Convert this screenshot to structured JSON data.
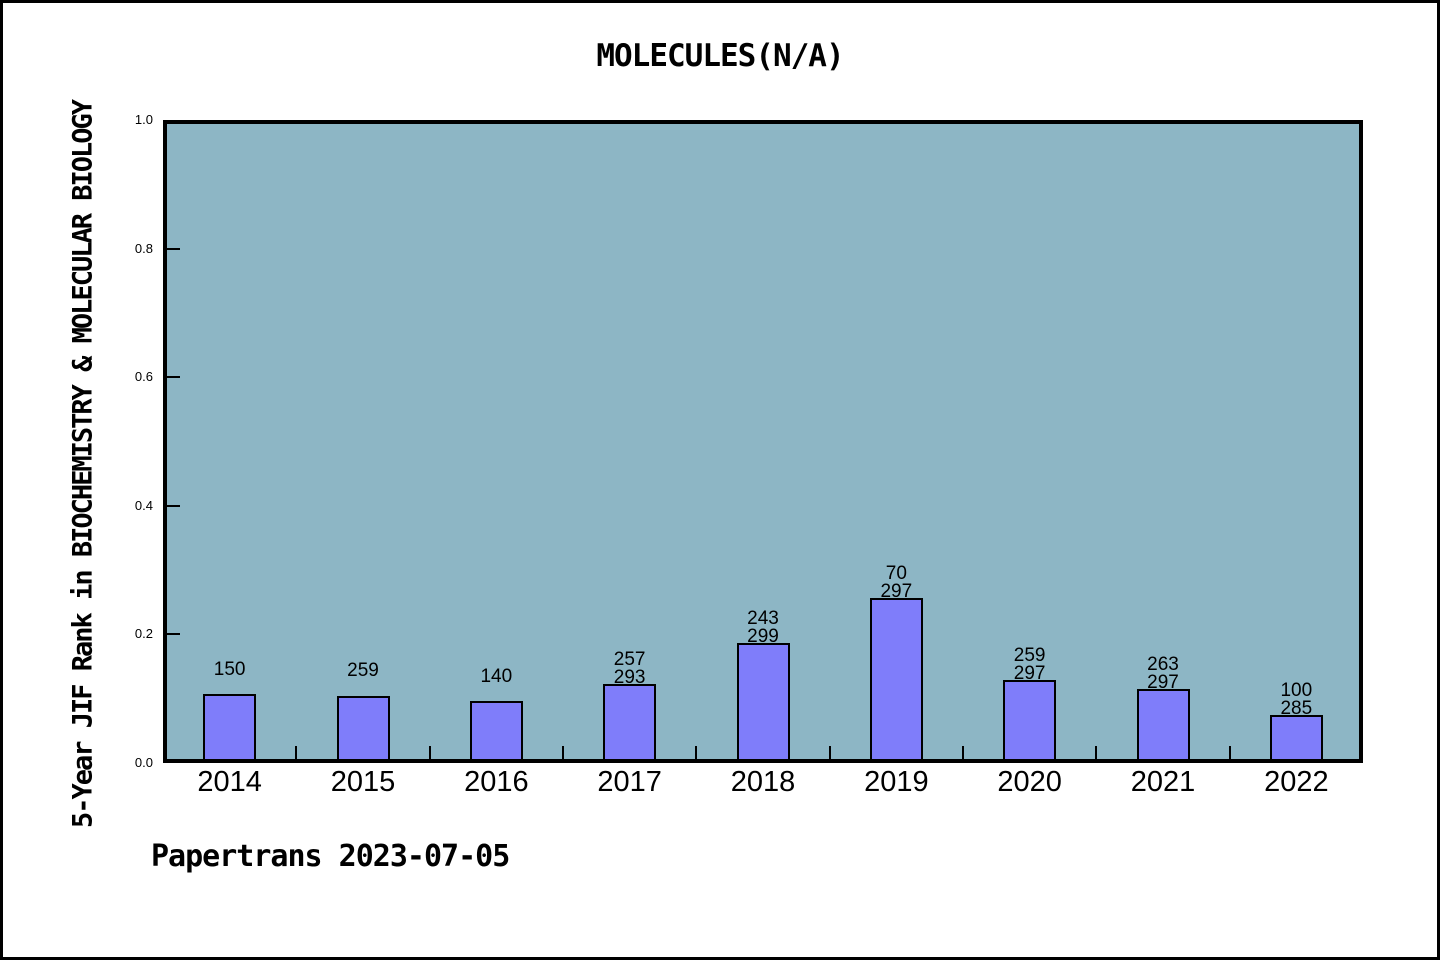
{
  "title": "MOLECULES(N/A)",
  "footer": "Papertrans 2023-07-05",
  "colors": {
    "bar_fill": "#7f7dfa",
    "bar_edge": "#000000",
    "plot_background": "#8db6c5",
    "frame": "#000000",
    "figure_background": "#ffffff"
  },
  "chart_data": {
    "type": "bar",
    "title": "MOLECULES(N/A)",
    "xlabel": "",
    "ylabel": "5-Year JIF Rank in BIOCHEMISTRY & MOLECULAR BIOLOGY",
    "categories": [
      "2014",
      "2015",
      "2016",
      "2017",
      "2018",
      "2019",
      "2020",
      "2021",
      "2022"
    ],
    "values": [
      0.107,
      0.105,
      0.097,
      0.123,
      0.187,
      0.256,
      0.129,
      0.115,
      0.075
    ],
    "bar_labels": [
      [
        "150"
      ],
      [
        "259"
      ],
      [
        "140"
      ],
      [
        "257",
        "293"
      ],
      [
        "243",
        "299"
      ],
      [
        "70",
        "297"
      ],
      [
        "259",
        "297"
      ],
      [
        "263",
        "297"
      ],
      [
        "100",
        "285"
      ]
    ],
    "ylim": [
      0,
      1
    ],
    "yticks": [
      0.0,
      0.2,
      0.4,
      0.6,
      0.8,
      1.0
    ],
    "ytick_labels": [
      "0.0",
      "0.2",
      "0.4",
      "0.6",
      "0.8",
      "1.0"
    ],
    "grid": false,
    "legend": null,
    "annotation": "Papertrans 2023-07-05"
  }
}
